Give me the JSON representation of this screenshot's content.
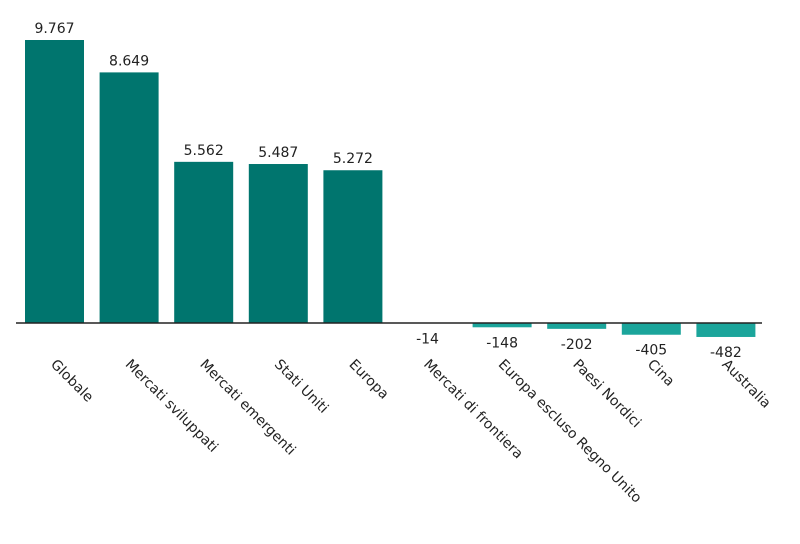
{
  "chart_data": {
    "type": "bar",
    "title": "",
    "xlabel": "",
    "ylabel": "",
    "categories": [
      "Globale",
      "Mercati sviluppati",
      "Mercati emergenti",
      "Stati Uniti",
      "Europa",
      "Mercati di frontiera",
      "Europa escluso Regno Unito",
      "Paesi Nordici",
      "Cina",
      "Australia"
    ],
    "values": [
      9767,
      8649,
      5562,
      5487,
      5272,
      -14,
      -148,
      -202,
      -405,
      -482
    ],
    "value_labels": [
      "9.767",
      "8.649",
      "5.562",
      "5.487",
      "5.272",
      "-14",
      "-148",
      "-202",
      "-405",
      "-482"
    ],
    "ylim": [
      -482,
      9767
    ],
    "grid": false,
    "colors": {
      "positive": "#00756E",
      "negative": "#1BA59B",
      "axis": "#222222"
    }
  }
}
